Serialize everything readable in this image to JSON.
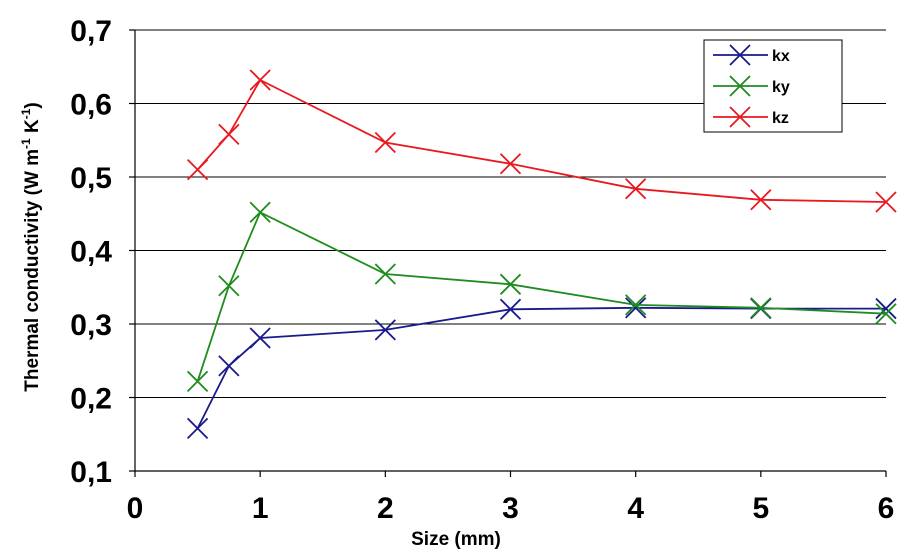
{
  "chart_data": {
    "type": "line",
    "xlabel": "Size (mm)",
    "ylabel": "Thermal conductivity (W m",
    "ylabel_sup1": "-1",
    "ylabel_mid": " K",
    "ylabel_sup2": "-1",
    "ylabel_end": ")",
    "xlim": [
      0,
      6
    ],
    "ylim": [
      0.1,
      0.7
    ],
    "x_ticks": [
      0,
      1,
      2,
      3,
      4,
      5,
      6
    ],
    "x_tick_labels": [
      "0",
      "1",
      "2",
      "3",
      "4",
      "5",
      "6"
    ],
    "y_ticks": [
      0.1,
      0.2,
      0.3,
      0.4,
      0.5,
      0.6,
      0.7
    ],
    "y_tick_labels": [
      "0,1",
      "0,2",
      "0,3",
      "0,4",
      "0,5",
      "0,6",
      "0,7"
    ],
    "grid": "horizontal",
    "legend_position": "top-right",
    "x": [
      0.5,
      0.75,
      1,
      2,
      3,
      4,
      5,
      6
    ],
    "series": [
      {
        "name": "kx",
        "color": "#1a1a8c",
        "values": [
          0.158,
          0.243,
          0.281,
          0.292,
          0.32,
          0.322,
          0.321,
          0.321
        ]
      },
      {
        "name": "ky",
        "color": "#1f8c1f",
        "values": [
          0.222,
          0.352,
          0.452,
          0.368,
          0.354,
          0.326,
          0.322,
          0.314
        ]
      },
      {
        "name": "kz",
        "color": "#e8191f",
        "values": [
          0.51,
          0.558,
          0.632,
          0.547,
          0.518,
          0.484,
          0.469,
          0.466
        ]
      }
    ]
  }
}
